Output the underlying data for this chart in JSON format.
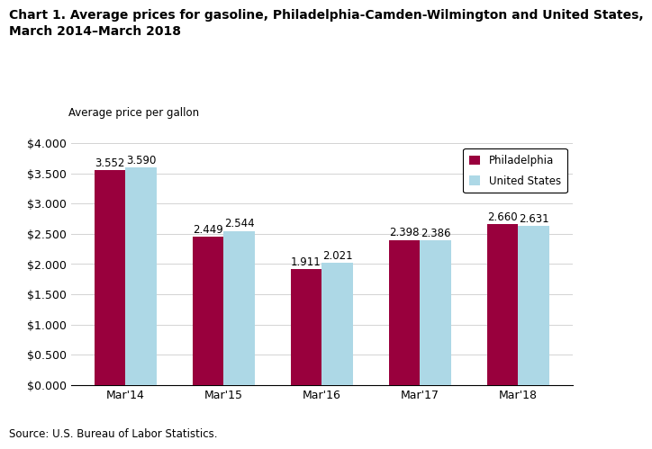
{
  "title_line1": "Chart 1. Average prices for gasoline, Philadelphia-Camden-Wilmington and United States,",
  "title_line2": "March 2014–March 2018",
  "ylabel": "Average price per gallon",
  "source": "Source: U.S. Bureau of Labor Statistics.",
  "categories": [
    "Mar'14",
    "Mar'15",
    "Mar'16",
    "Mar'17",
    "Mar'18"
  ],
  "philadelphia": [
    3.552,
    2.449,
    1.911,
    2.398,
    2.66
  ],
  "us": [
    3.59,
    2.544,
    2.021,
    2.386,
    2.631
  ],
  "philly_color": "#99003d",
  "us_color": "#add8e6",
  "bar_width": 0.32,
  "ylim": [
    0,
    4.0
  ],
  "yticks": [
    0.0,
    0.5,
    1.0,
    1.5,
    2.0,
    2.5,
    3.0,
    3.5,
    4.0
  ],
  "legend_labels": [
    "Philadelphia",
    "United States"
  ],
  "title_fontsize": 10,
  "label_fontsize": 8.5,
  "tick_fontsize": 9,
  "source_fontsize": 8.5,
  "annotation_fontsize": 8.5
}
